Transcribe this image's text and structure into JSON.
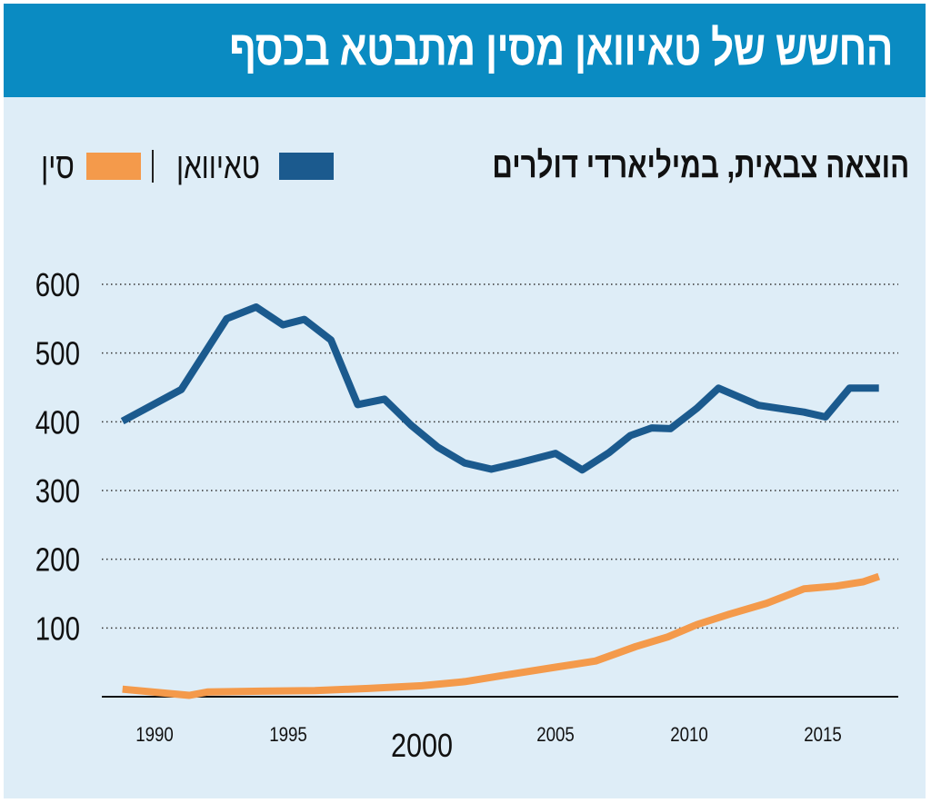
{
  "header": {
    "title": "החשש של טאיוואן מסין מתבטא בכסף"
  },
  "colors": {
    "banner": "#0a8bc2",
    "background": "#deedf7",
    "taiwan": "#1b5a8e",
    "china": "#f49a4b",
    "grid": "#333333"
  },
  "chart_data": {
    "type": "line",
    "title": "החשש של טאיוואן מסין מתבטא בכסף",
    "subtitle": "הוצאה צבאית, במיליארדי דולרים",
    "xlabel": "",
    "ylabel": "הוצאה צבאית, במיליארדי דולרים",
    "xlim": [
      1987.3,
      2018.1
    ],
    "ylim": [
      0,
      600
    ],
    "x_ticks": [
      {
        "value": 1990,
        "label": "1990",
        "emphasis": false
      },
      {
        "value": 1995,
        "label": "1995",
        "emphasis": false
      },
      {
        "value": 2000,
        "label": "2000",
        "emphasis": true
      },
      {
        "value": 2005,
        "label": "2005",
        "emphasis": false
      },
      {
        "value": 2010,
        "label": "2010",
        "emphasis": false
      },
      {
        "value": 2015,
        "label": "2015",
        "emphasis": false
      }
    ],
    "y_ticks": [
      {
        "value": 100,
        "label": "100"
      },
      {
        "value": 200,
        "label": "200"
      },
      {
        "value": 300,
        "label": "300"
      },
      {
        "value": 400,
        "label": "400"
      },
      {
        "value": 500,
        "label": "500"
      },
      {
        "value": 600,
        "label": "600"
      }
    ],
    "grid": "horizontal-dotted",
    "legend_position": "top-left",
    "legend": [
      {
        "name": "טאיוואן",
        "color": "#1b5a8e"
      },
      {
        "name": "סין",
        "color": "#f49a4b"
      }
    ],
    "series": [
      {
        "name": "טאיוואן",
        "color": "#1b5a8e",
        "points": [
          [
            1988.8,
            401
          ],
          [
            1991.0,
            447
          ],
          [
            1992.7,
            550
          ],
          [
            1993.8,
            567
          ],
          [
            1994.8,
            541
          ],
          [
            1995.6,
            549
          ],
          [
            1996.6,
            519
          ],
          [
            1997.6,
            425
          ],
          [
            1998.6,
            433
          ],
          [
            1999.6,
            395
          ],
          [
            2000.6,
            363
          ],
          [
            2001.6,
            340
          ],
          [
            2002.6,
            331
          ],
          [
            2003.6,
            340
          ],
          [
            2005.0,
            354
          ],
          [
            2006.0,
            330
          ],
          [
            2007.0,
            355
          ],
          [
            2007.8,
            380
          ],
          [
            2008.6,
            391
          ],
          [
            2009.3,
            390
          ],
          [
            2010.3,
            420
          ],
          [
            2011.1,
            449
          ],
          [
            2012.6,
            424
          ],
          [
            2014.3,
            414
          ],
          [
            2015.1,
            407
          ],
          [
            2016.0,
            449
          ],
          [
            2017.1,
            449
          ]
        ]
      },
      {
        "name": "סין",
        "color": "#f49a4b",
        "points": [
          [
            1988.8,
            11
          ],
          [
            1991.3,
            2
          ],
          [
            1992.0,
            7
          ],
          [
            1994.0,
            8
          ],
          [
            1996.0,
            9
          ],
          [
            1998.0,
            12
          ],
          [
            2000.0,
            16
          ],
          [
            2001.6,
            22
          ],
          [
            2003.2,
            32
          ],
          [
            2005.0,
            43
          ],
          [
            2006.5,
            52
          ],
          [
            2008.0,
            73
          ],
          [
            2009.2,
            87
          ],
          [
            2010.3,
            105
          ],
          [
            2011.5,
            120
          ],
          [
            2012.9,
            136
          ],
          [
            2014.3,
            157
          ],
          [
            2015.5,
            161
          ],
          [
            2016.5,
            167
          ],
          [
            2017.1,
            175
          ]
        ]
      }
    ]
  }
}
